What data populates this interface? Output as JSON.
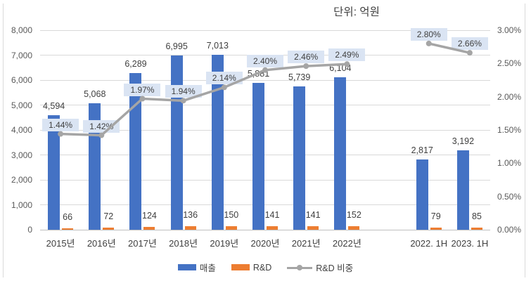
{
  "title": "단위: 억원",
  "colors": {
    "revenue_bar": "#4472C4",
    "rnd_bar": "#ED7D31",
    "ratio_line": "#A5A5A5",
    "pct_label_bg": "#DAE4F3",
    "gridline": "#D9D9D9",
    "axis_text": "#595959",
    "data_label_text": "#3F3F3F"
  },
  "chart_data": {
    "type": "bar+line combo",
    "categories": [
      "2015년",
      "2016년",
      "2017년",
      "2018년",
      "2019년",
      "2020년",
      "2021년",
      "2022년",
      "2022. 1H",
      "2023. 1H"
    ],
    "series": [
      {
        "name": "매출",
        "type": "bar",
        "axis": "left",
        "color": "#4472C4",
        "values": [
          4594,
          5068,
          6289,
          6995,
          7013,
          5881,
          5739,
          6104,
          2817,
          3192
        ],
        "labels": [
          "4,594",
          "5,068",
          "6,289",
          "6,995",
          "7,013",
          "5,881",
          "5,739",
          "6,104",
          "2,817",
          "3,192"
        ]
      },
      {
        "name": "R&D",
        "type": "bar",
        "axis": "left",
        "color": "#ED7D31",
        "values": [
          66,
          72,
          124,
          136,
          150,
          141,
          141,
          152,
          79,
          85
        ],
        "labels": [
          "66",
          "72",
          "124",
          "136",
          "150",
          "141",
          "141",
          "152",
          "79",
          "85"
        ]
      },
      {
        "name": "R&D 비중",
        "type": "line",
        "axis": "right",
        "color": "#A5A5A5",
        "values": [
          1.44,
          1.42,
          1.97,
          1.94,
          2.14,
          2.4,
          2.46,
          2.49,
          2.8,
          2.66
        ],
        "labels": [
          "1.44%",
          "1.42%",
          "1.97%",
          "1.94%",
          "2.14%",
          "2.40%",
          "2.46%",
          "2.49%",
          "2.80%",
          "2.66%"
        ],
        "break_after_index": 7
      }
    ],
    "left_axis": {
      "min": 0,
      "max": 8000,
      "tick_step": 1000,
      "ticks": [
        "0",
        "1,000",
        "2,000",
        "3,000",
        "4,000",
        "5,000",
        "6,000",
        "7,000",
        "8,000"
      ]
    },
    "right_axis": {
      "min": 0,
      "max": 3,
      "tick_step": 0.5,
      "ticks": [
        "0.00%",
        "0.50%",
        "1.00%",
        "1.50%",
        "2.00%",
        "2.50%",
        "3.00%"
      ]
    },
    "grid": "horizontal",
    "legend_position": "bottom",
    "gap_slot_after_category_index": 7
  }
}
